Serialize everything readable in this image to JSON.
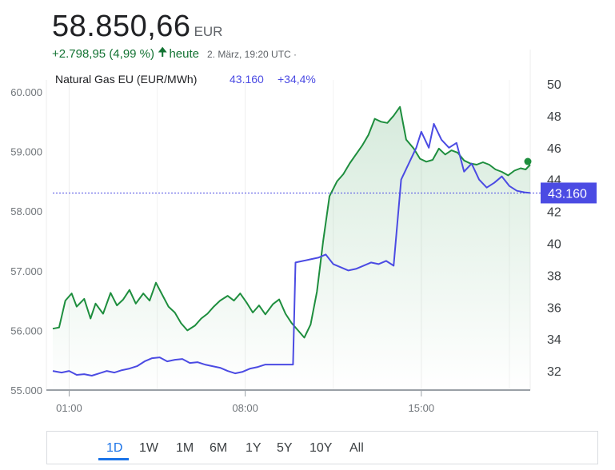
{
  "header": {
    "price": "58.850,66",
    "currency": "EUR",
    "change": "+2.798,95 (4,99 %)",
    "arrow_icon": "arrow-up-icon",
    "change_period": "heute",
    "timestamp": "2. März, 19:20 UTC ·"
  },
  "comparison": {
    "name": "Natural Gas EU (EUR/MWh)",
    "value": "43.160",
    "change": "+34,4%"
  },
  "current_badge": "43.160",
  "tabs": [
    "1D",
    "1W",
    "1M",
    "6M",
    "1Y",
    "5Y",
    "10Y",
    "All"
  ],
  "active_tab": "1D",
  "colors": {
    "main_series": "#1e8e3e",
    "compare_series": "#4b4be3",
    "badge": "#4b4be3"
  },
  "chart_data": {
    "type": "line",
    "x_ticks": [
      "01:00",
      "08:00",
      "15:00"
    ],
    "x_tick_hours": [
      1,
      8,
      15
    ],
    "x_range_hours": [
      0.35,
      19.33
    ],
    "left_axis": {
      "ticks": [
        55000,
        56000,
        57000,
        58000,
        59000,
        60000
      ],
      "tick_labels": [
        "55.000",
        "56.000",
        "57.000",
        "58.000",
        "59.000",
        "60.000"
      ],
      "range": [
        55000,
        60000
      ]
    },
    "right_axis": {
      "ticks": [
        32,
        34,
        36,
        38,
        40,
        42,
        44,
        46,
        48,
        50
      ],
      "range": [
        30.8,
        50
      ]
    },
    "grid": "vertical",
    "series": [
      {
        "axis": "left",
        "color": "#1e8e3e",
        "area": true,
        "x": [
          0.35,
          0.6,
          0.85,
          1.1,
          1.3,
          1.6,
          1.85,
          2.05,
          2.35,
          2.65,
          2.9,
          3.15,
          3.4,
          3.65,
          3.95,
          4.2,
          4.45,
          4.7,
          4.95,
          5.2,
          5.45,
          5.7,
          6.0,
          6.25,
          6.5,
          6.75,
          7.0,
          7.3,
          7.55,
          7.8,
          8.05,
          8.3,
          8.55,
          8.8,
          9.1,
          9.35,
          9.6,
          9.85,
          10.1,
          10.35,
          10.6,
          10.85,
          11.1,
          11.35,
          11.65,
          11.9,
          12.15,
          12.4,
          12.65,
          12.9,
          13.15,
          13.4,
          13.65,
          13.9,
          14.15,
          14.4,
          14.7,
          14.95,
          15.2,
          15.45,
          15.7,
          15.95,
          16.2,
          16.45,
          16.7,
          16.95,
          17.2,
          17.45,
          17.7,
          17.95,
          18.2,
          18.45,
          18.7,
          18.95,
          19.15,
          19.33
        ],
        "values": [
          56.03,
          56.05,
          56.5,
          56.62,
          56.4,
          56.53,
          56.2,
          56.45,
          56.28,
          56.63,
          56.42,
          56.52,
          56.68,
          56.45,
          56.62,
          56.5,
          56.8,
          56.6,
          56.4,
          56.3,
          56.12,
          56.0,
          56.08,
          56.2,
          56.28,
          56.4,
          56.5,
          56.58,
          56.5,
          56.62,
          56.47,
          56.3,
          56.42,
          56.27,
          56.44,
          56.52,
          56.28,
          56.12,
          56.0,
          55.88,
          56.1,
          56.65,
          57.5,
          58.25,
          58.5,
          58.62,
          58.8,
          58.95,
          59.1,
          59.28,
          59.55,
          59.5,
          59.48,
          59.6,
          59.75,
          59.2,
          59.05,
          58.88,
          58.83,
          58.86,
          59.05,
          58.95,
          59.02,
          58.98,
          58.85,
          58.8,
          58.78,
          58.82,
          58.78,
          58.7,
          58.66,
          58.6,
          58.68,
          58.72,
          58.7,
          58.78
        ]
      },
      {
        "axis": "right",
        "color": "#4b4be3",
        "area": false,
        "x": [
          0.35,
          0.7,
          1.0,
          1.3,
          1.6,
          1.9,
          2.2,
          2.5,
          2.8,
          3.1,
          3.4,
          3.7,
          4.0,
          4.3,
          4.6,
          4.9,
          5.2,
          5.5,
          5.8,
          6.1,
          6.4,
          6.7,
          7.0,
          7.3,
          7.6,
          7.9,
          8.2,
          8.5,
          8.8,
          9.1,
          9.4,
          9.7,
          9.9,
          10.0,
          10.3,
          10.6,
          10.9,
          11.2,
          11.5,
          11.8,
          12.1,
          12.4,
          12.7,
          13.0,
          13.3,
          13.6,
          13.9,
          14.2,
          14.5,
          14.8,
          15.0,
          15.3,
          15.5,
          15.8,
          16.1,
          16.4,
          16.7,
          17.0,
          17.3,
          17.6,
          17.9,
          18.2,
          18.5,
          18.8,
          19.1,
          19.33
        ],
        "values": [
          32.0,
          31.9,
          32.0,
          31.75,
          31.8,
          31.7,
          31.85,
          32.0,
          31.9,
          32.05,
          32.15,
          32.3,
          32.6,
          32.8,
          32.85,
          32.6,
          32.7,
          32.75,
          32.5,
          32.55,
          32.4,
          32.3,
          32.2,
          32.0,
          31.85,
          31.95,
          32.15,
          32.25,
          32.4,
          32.4,
          32.4,
          32.4,
          32.4,
          38.8,
          38.9,
          39.0,
          39.1,
          39.3,
          38.7,
          38.5,
          38.3,
          38.4,
          38.6,
          38.8,
          38.7,
          38.9,
          38.6,
          44.0,
          45.0,
          46.0,
          47.0,
          46.0,
          47.5,
          46.5,
          46.0,
          46.3,
          44.5,
          45.0,
          44.0,
          43.5,
          43.8,
          44.2,
          43.6,
          43.3,
          43.2,
          43.16
        ]
      }
    ]
  }
}
